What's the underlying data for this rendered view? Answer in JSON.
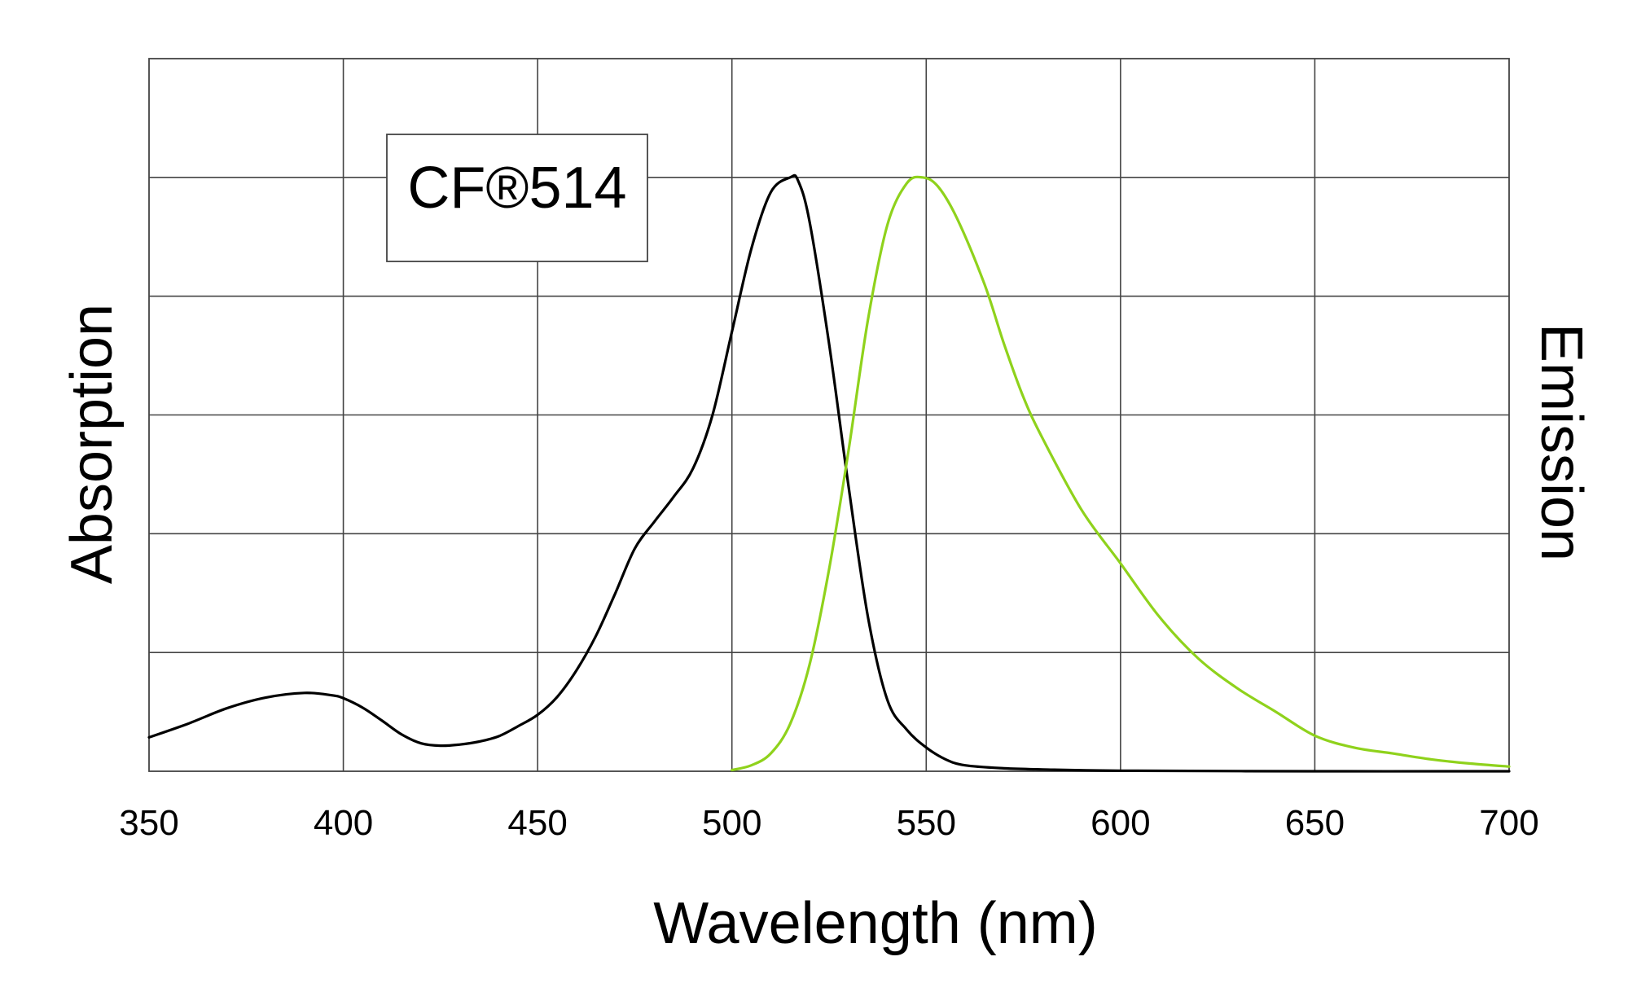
{
  "chart_data": {
    "type": "line",
    "title": "CF®514",
    "xlabel": "Wavelength  (nm)",
    "ylabel_left": "Absorption",
    "ylabel_right": "Emission",
    "xlim": [
      350,
      700
    ],
    "ylim": [
      0,
      1.2
    ],
    "x_ticks": [
      "350",
      "400",
      "450",
      "500",
      "550",
      "600",
      "650",
      "700"
    ],
    "y_grid_values": [
      0.2,
      0.4,
      0.6,
      0.8,
      1.0
    ],
    "grid": true,
    "series": [
      {
        "name": "Absorption",
        "color": "#000000",
        "x": [
          350,
          360,
          370,
          380,
          390,
          397,
          400,
          405,
          410,
          415,
          420,
          425,
          430,
          435,
          440,
          445,
          450,
          455,
          460,
          465,
          470,
          475,
          480,
          485,
          490,
          495,
          500,
          505,
          510,
          515,
          517,
          520,
          525,
          530,
          535,
          540,
          545,
          550,
          555,
          560,
          570,
          580,
          600,
          650,
          700
        ],
        "y": [
          0.057,
          0.08,
          0.106,
          0.124,
          0.132,
          0.128,
          0.123,
          0.107,
          0.085,
          0.062,
          0.047,
          0.043,
          0.045,
          0.05,
          0.059,
          0.076,
          0.095,
          0.125,
          0.17,
          0.228,
          0.3,
          0.375,
          0.42,
          0.462,
          0.51,
          0.6,
          0.74,
          0.88,
          0.975,
          1.0,
          0.995,
          0.925,
          0.72,
          0.48,
          0.26,
          0.12,
          0.07,
          0.04,
          0.02,
          0.01,
          0.005,
          0.003,
          0.001,
          0.0,
          0.0
        ]
      },
      {
        "name": "Emission",
        "color": "#8fd21c",
        "x": [
          500,
          505,
          510,
          515,
          520,
          525,
          530,
          535,
          540,
          545,
          549,
          553,
          558,
          565,
          570,
          575,
          580,
          590,
          600,
          610,
          620,
          630,
          640,
          650,
          660,
          670,
          680,
          690,
          700
        ],
        "y": [
          0.002,
          0.01,
          0.03,
          0.08,
          0.18,
          0.34,
          0.54,
          0.76,
          0.92,
          0.99,
          1.0,
          0.985,
          0.93,
          0.82,
          0.72,
          0.63,
          0.56,
          0.44,
          0.35,
          0.26,
          0.19,
          0.14,
          0.1,
          0.06,
          0.04,
          0.03,
          0.02,
          0.013,
          0.008
        ]
      }
    ]
  }
}
